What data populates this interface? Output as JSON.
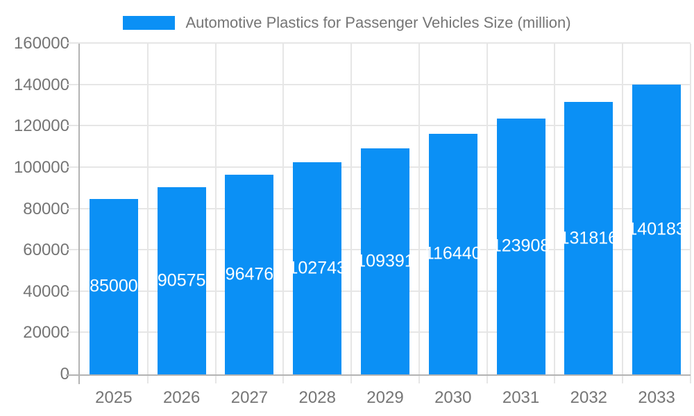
{
  "chart_data": {
    "type": "bar",
    "title": "Automotive Plastics for Passenger Vehicles Size (million)",
    "categories": [
      "2025",
      "2026",
      "2027",
      "2028",
      "2029",
      "2030",
      "2031",
      "2032",
      "2033"
    ],
    "values": [
      85000,
      90575,
      96476,
      102743,
      109391,
      116440,
      123908,
      131816,
      140183
    ],
    "series": [
      {
        "name": "Automotive Plastics for Passenger Vehicles Size (million)",
        "values": [
          85000,
          90575,
          96476,
          102743,
          109391,
          116440,
          123908,
          131816,
          140183
        ]
      }
    ],
    "xlabel": "",
    "ylabel": "",
    "ylim": [
      0,
      160000
    ],
    "y_ticks": [
      0,
      20000,
      40000,
      60000,
      80000,
      100000,
      120000,
      140000,
      160000
    ],
    "grid": true,
    "legend_position": "top-center",
    "value_labels_shown": true,
    "colors": {
      "bar": "#0b90f5",
      "value_label": "#ffffff",
      "axis_text": "#757575",
      "grid_line": "#e6e6e6",
      "axis_line": "#b3b3b3",
      "background": "#ffffff"
    }
  }
}
